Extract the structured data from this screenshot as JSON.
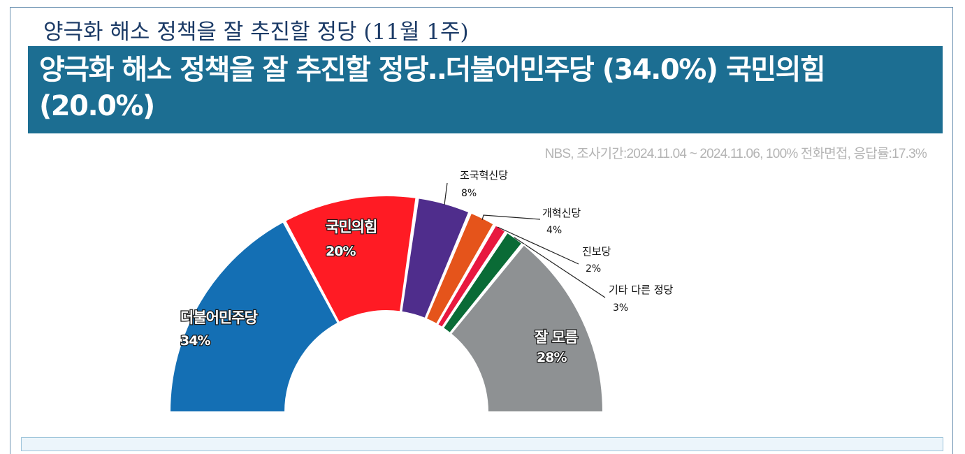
{
  "header": {
    "subtitle": "양극화 해소 정책을 잘 추진할 정당 (11월 1주)",
    "title": "양극화 해소 정책을 잘 추진할 정당‥더불어민주당 (34.0%) 국민의힘 (20.0%)"
  },
  "source": "NBS, 조사기간:2024.11.04 ~ 2024.11.06, 100% 전화면접, 응답률:17.3%",
  "chart_data": {
    "type": "pie",
    "variant": "half-donut",
    "categories": [
      "더불어민주당",
      "국민의힘",
      "조국혁신당",
      "개혁신당",
      "진보당",
      "기타 다른 정당",
      "잘 모름"
    ],
    "values": [
      34,
      20,
      8,
      4,
      2,
      3,
      28
    ],
    "value_labels": [
      "34%",
      "20%",
      "8%",
      "4%",
      "2%",
      "3%",
      "28%"
    ],
    "colors": [
      "#146fb4",
      "#ff1b24",
      "#4f2d8c",
      "#e5541b",
      "#e8183f",
      "#0a6b36",
      "#8e9193"
    ]
  }
}
